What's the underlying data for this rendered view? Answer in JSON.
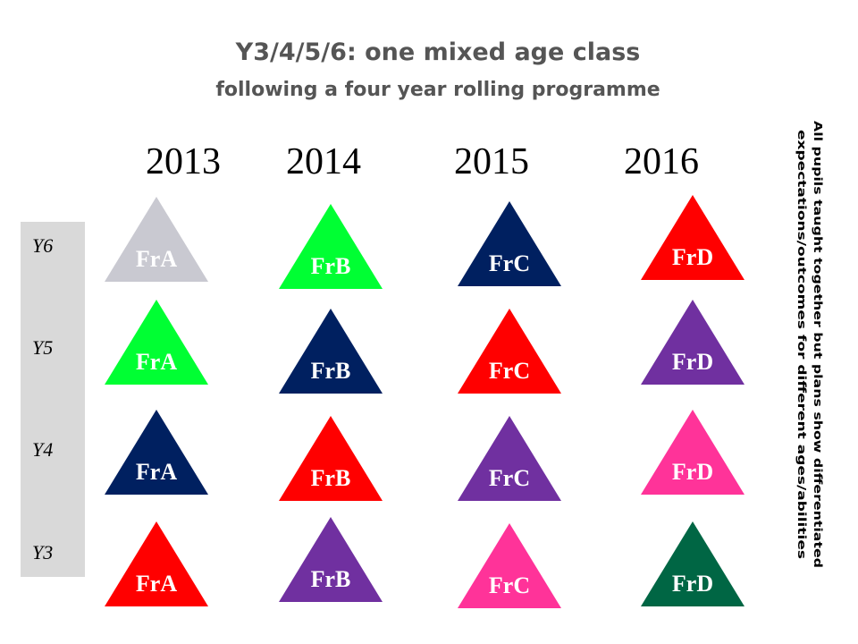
{
  "header": {
    "title": "Y3/4/5/6: one mixed age class",
    "subtitle": "following a four year rolling programme"
  },
  "years": [
    "2013",
    "2014",
    "2015",
    "2016"
  ],
  "year_groups": [
    "Y6",
    "Y5",
    "Y4",
    "Y3"
  ],
  "note": [
    "All pupils taught  together but  plans show differentiated",
    "expectations/outcomes  for  different  ages/abilities"
  ],
  "columns": [
    {
      "triangles": [
        {
          "label": "FrA",
          "color": "#c9c9d1"
        },
        {
          "label": "FrA",
          "color": "#00ff33"
        },
        {
          "label": "FrA",
          "color": "#002060"
        },
        {
          "label": "FrA",
          "color": "#ff0000"
        }
      ]
    },
    {
      "triangles": [
        {
          "label": "FrB",
          "color": "#00ff33"
        },
        {
          "label": "FrB",
          "color": "#002060"
        },
        {
          "label": "FrB",
          "color": "#ff0000"
        },
        {
          "label": "FrB",
          "color": "#7030a0"
        }
      ]
    },
    {
      "triangles": [
        {
          "label": "FrC",
          "color": "#002060"
        },
        {
          "label": "FrC",
          "color": "#ff0000"
        },
        {
          "label": "FrC",
          "color": "#7030a0"
        },
        {
          "label": "FrC",
          "color": "#ff3399"
        }
      ]
    },
    {
      "triangles": [
        {
          "label": "FrD",
          "color": "#ff0000"
        },
        {
          "label": "FrD",
          "color": "#7030a0"
        },
        {
          "label": "FrD",
          "color": "#ff3399"
        },
        {
          "label": "FrD",
          "color": "#006644"
        }
      ]
    }
  ]
}
